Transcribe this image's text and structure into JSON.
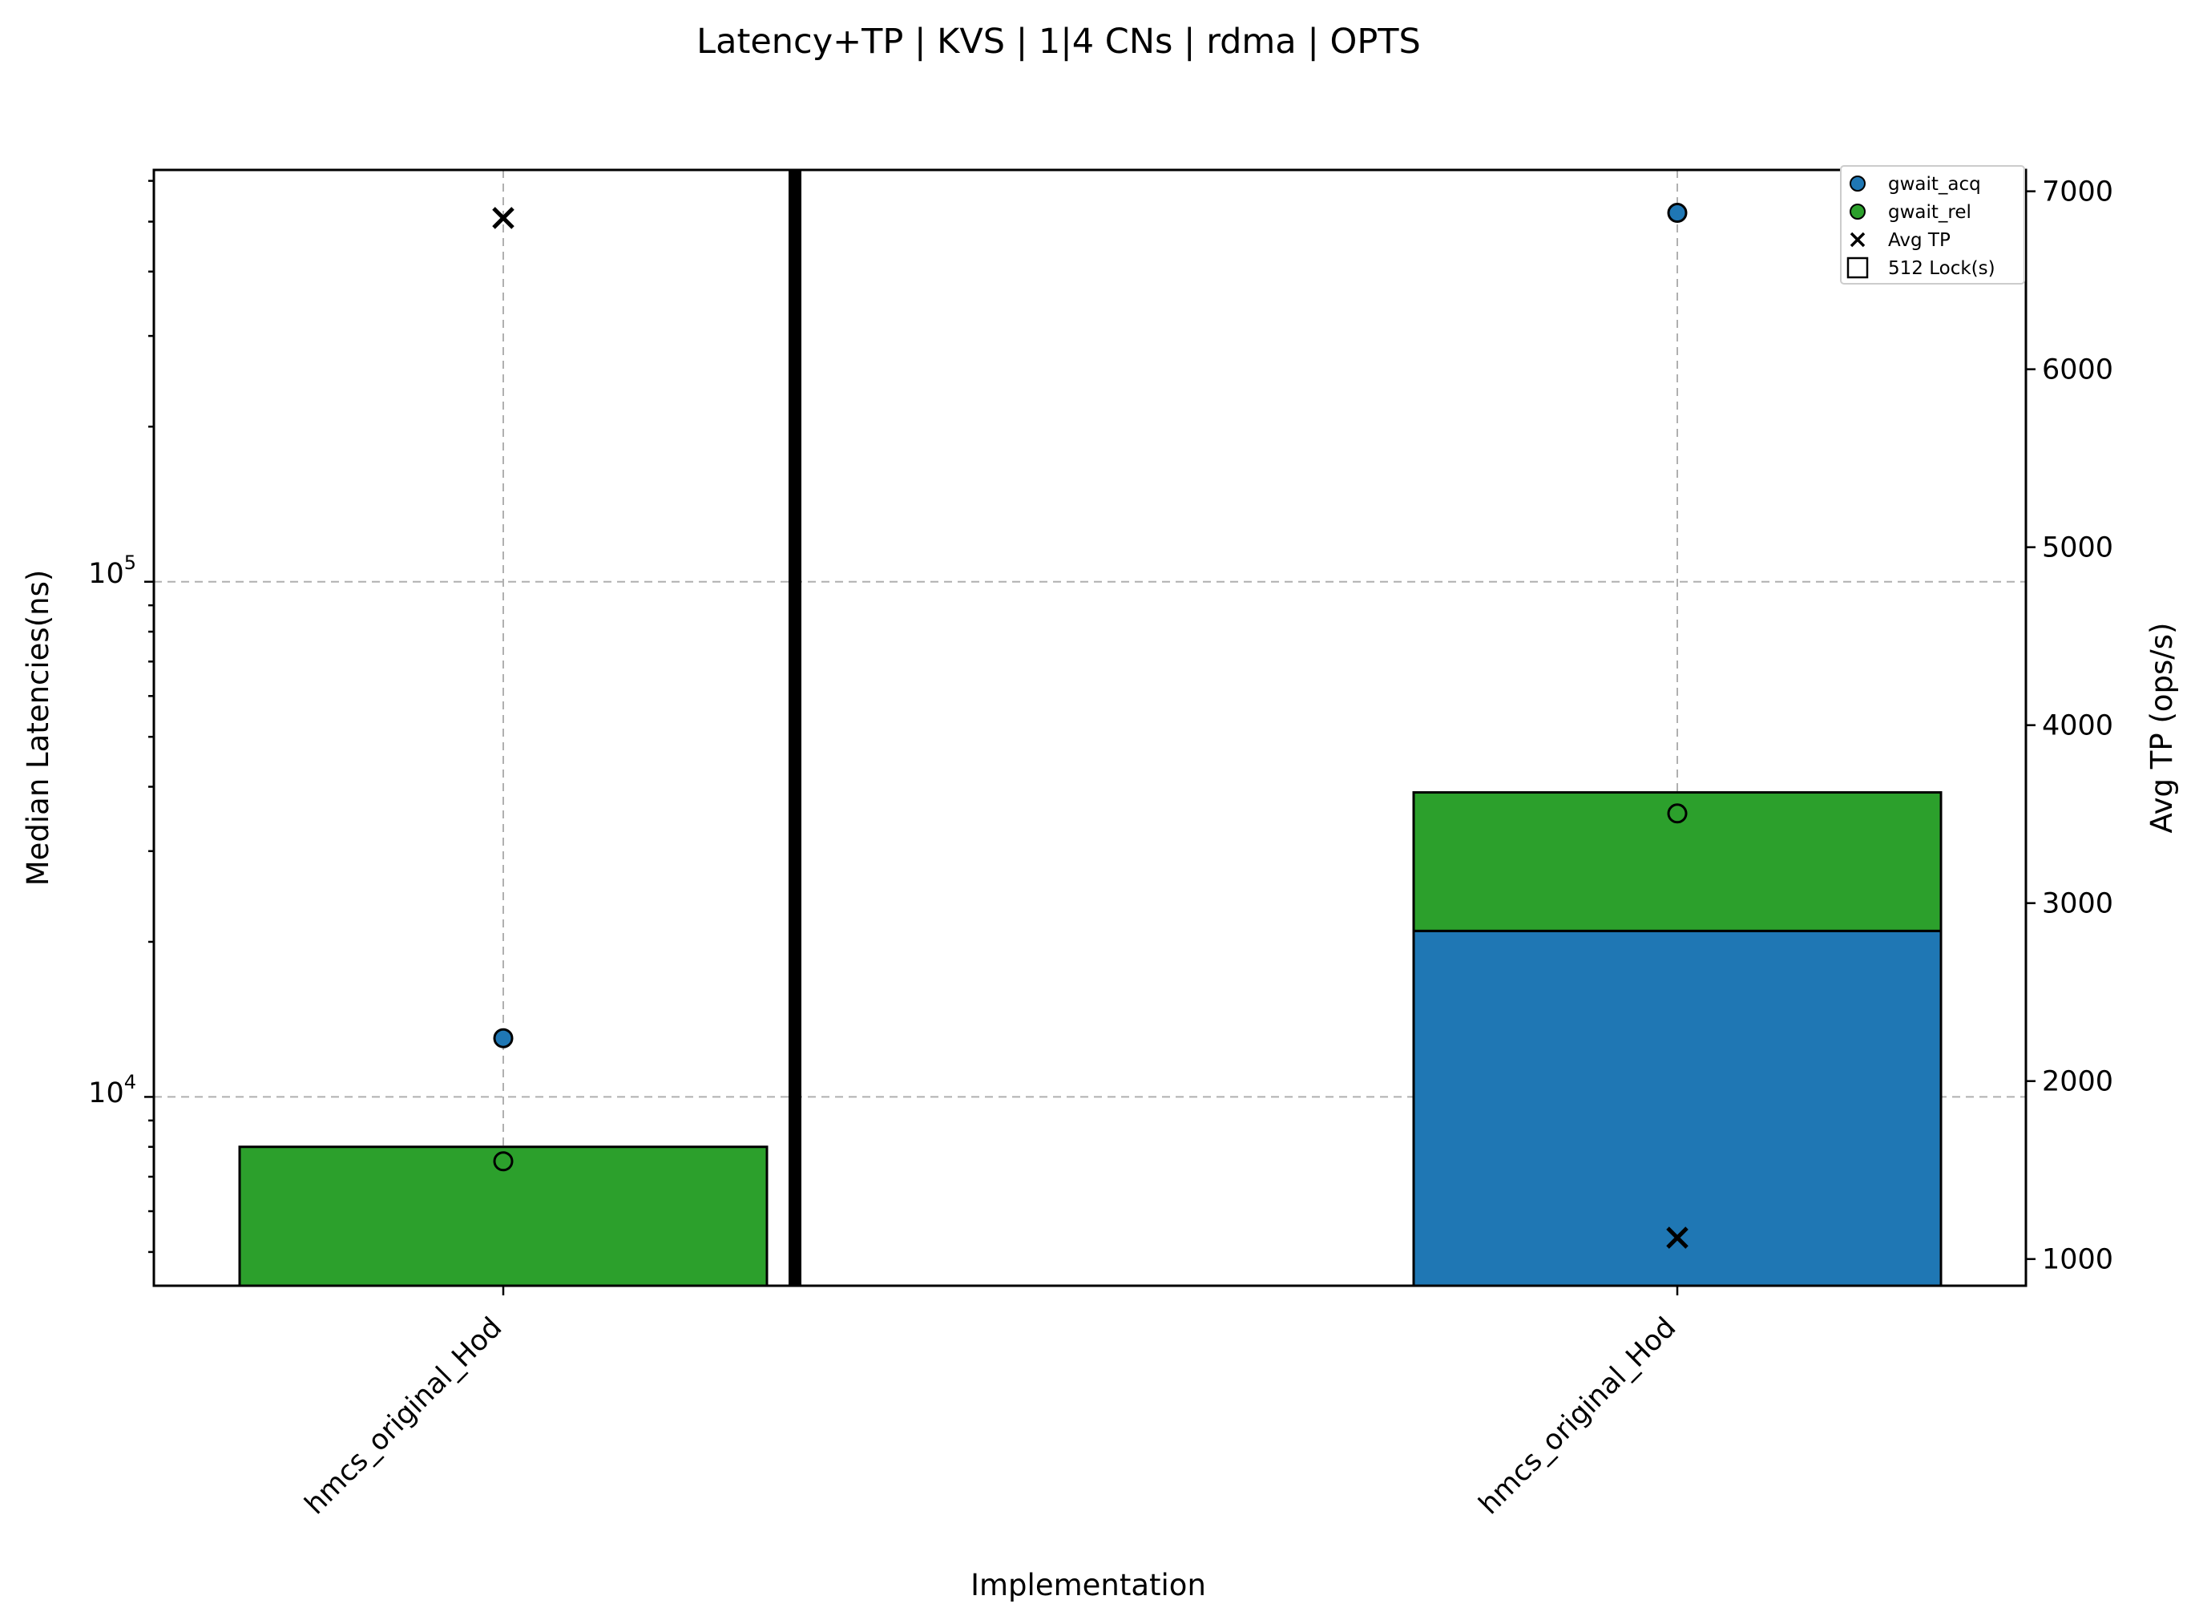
{
  "chart_data": {
    "type": "bar",
    "title": "Latency+TP | KVS | 1|4 CNs | rdma | OPTS",
    "xlabel": "Implementation",
    "ylabel": "Median Latencies(ns)",
    "y2label": "Avg TP (ops/s)",
    "y_scale": "log",
    "ylim": [
      4300,
      630000
    ],
    "y2lim": [
      850,
      7120
    ],
    "y2_ticks": [
      1000,
      2000,
      3000,
      4000,
      5000,
      6000,
      7000
    ],
    "y_tick_labels": [
      {
        "base": "10",
        "exp": "4",
        "value": 10000
      },
      {
        "base": "10",
        "exp": "5",
        "value": 100000
      }
    ],
    "grid": true,
    "legend_position": "top-right",
    "categories": [
      "hmcs_original_Hod",
      "hmcs_original_Hod"
    ],
    "group_separator": "after-first-category",
    "colors": {
      "gwait_acq": "#1f77b4",
      "gwait_rel": "#2ca02c",
      "avg_tp": "#000000"
    },
    "series": [
      {
        "name": "gwait_acq",
        "marker": "circle",
        "values": [
          13000,
          520000
        ],
        "bar_values": [
          0,
          21000
        ]
      },
      {
        "name": "gwait_rel",
        "marker": "circle",
        "values": [
          7500,
          35500
        ],
        "bar_values": [
          8000,
          18000
        ]
      },
      {
        "name": "Avg TP",
        "marker": "x",
        "axis": "right",
        "values": [
          6850,
          1120
        ]
      }
    ],
    "legend": [
      {
        "label": "gwait_acq",
        "symbol": "circle",
        "color": "#1f77b4"
      },
      {
        "label": "gwait_rel",
        "symbol": "circle",
        "color": "#2ca02c"
      },
      {
        "label": "Avg TP",
        "symbol": "x",
        "color": "#000000"
      },
      {
        "label": "512 Lock(s)",
        "symbol": "square",
        "color": "#ffffff"
      }
    ]
  }
}
